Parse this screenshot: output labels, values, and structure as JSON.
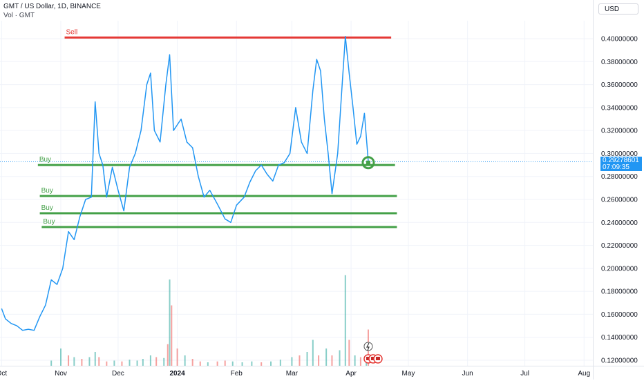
{
  "header": {
    "title": "GMT / US Dollar, 1D, BINANCE",
    "volume_label": "Vol · GMT",
    "currency": "USD"
  },
  "last_price": {
    "value": "0.29278601",
    "countdown": "07:09:35"
  },
  "colors": {
    "price_line": "#2196f3",
    "sell_line": "#e53935",
    "buy_line": "#43a047",
    "vol_up": "#26a69a",
    "vol_down": "#ef5350"
  },
  "chart_data": {
    "type": "line",
    "title": "GMT / US Dollar, 1D, BINANCE",
    "ylim": [
      0.12,
      0.41
    ],
    "y_ticks": [
      "0.40000000",
      "0.38000000",
      "0.36000000",
      "0.34000000",
      "0.32000000",
      "0.30000000",
      "0.28000000",
      "0.26000000",
      "0.24000000",
      "0.22000000",
      "0.20000000",
      "0.18000000",
      "0.16000000",
      "0.14000000",
      "0.12000000"
    ],
    "x_tick_labels": [
      "Oct",
      "Nov",
      "Dec",
      "2024",
      "Feb",
      "Mar",
      "Apr",
      "May",
      "Jun",
      "Jul",
      "Aug"
    ],
    "x_tick_dates": [
      "2023-10-01",
      "2023-11-01",
      "2023-12-01",
      "2024-01-01",
      "2024-02-01",
      "2024-03-01",
      "2024-04-01",
      "2024-05-01",
      "2024-06-01",
      "2024-07-01",
      "2024-08-01"
    ],
    "series": [
      {
        "values": [
          [
            "2023-10-01",
            0.165
          ],
          [
            "2023-10-03",
            0.156
          ],
          [
            "2023-10-06",
            0.152
          ],
          [
            "2023-10-09",
            0.15
          ],
          [
            "2023-10-12",
            0.146
          ],
          [
            "2023-10-15",
            0.147
          ],
          [
            "2023-10-18",
            0.146
          ],
          [
            "2023-10-21",
            0.158
          ],
          [
            "2023-10-24",
            0.168
          ],
          [
            "2023-10-27",
            0.19
          ],
          [
            "2023-10-30",
            0.186
          ],
          [
            "2023-11-02",
            0.2
          ],
          [
            "2023-11-05",
            0.232
          ],
          [
            "2023-11-08",
            0.225
          ],
          [
            "2023-11-11",
            0.245
          ],
          [
            "2023-11-14",
            0.26
          ],
          [
            "2023-11-17",
            0.262
          ],
          [
            "2023-11-19",
            0.345
          ],
          [
            "2023-11-21",
            0.3
          ],
          [
            "2023-11-23",
            0.29
          ],
          [
            "2023-11-25",
            0.262
          ],
          [
            "2023-11-28",
            0.288
          ],
          [
            "2023-12-01",
            0.268
          ],
          [
            "2023-12-04",
            0.25
          ],
          [
            "2023-12-07",
            0.288
          ],
          [
            "2023-12-10",
            0.3
          ],
          [
            "2023-12-13",
            0.32
          ],
          [
            "2023-12-16",
            0.36
          ],
          [
            "2023-12-18",
            0.37
          ],
          [
            "2023-12-20",
            0.32
          ],
          [
            "2023-12-23",
            0.31
          ],
          [
            "2023-12-26",
            0.36
          ],
          [
            "2023-12-28",
            0.386
          ],
          [
            "2023-12-30",
            0.32
          ],
          [
            "2024-01-03",
            0.33
          ],
          [
            "2024-01-06",
            0.31
          ],
          [
            "2024-01-09",
            0.305
          ],
          [
            "2024-01-12",
            0.28
          ],
          [
            "2024-01-15",
            0.262
          ],
          [
            "2024-01-18",
            0.268
          ],
          [
            "2024-01-22",
            0.256
          ],
          [
            "2024-01-26",
            0.243
          ],
          [
            "2024-01-29",
            0.24
          ],
          [
            "2024-02-01",
            0.255
          ],
          [
            "2024-02-05",
            0.262
          ],
          [
            "2024-02-08",
            0.275
          ],
          [
            "2024-02-11",
            0.285
          ],
          [
            "2024-02-14",
            0.29
          ],
          [
            "2024-02-17",
            0.282
          ],
          [
            "2024-02-20",
            0.276
          ],
          [
            "2024-02-23",
            0.29
          ],
          [
            "2024-02-26",
            0.292
          ],
          [
            "2024-02-29",
            0.3
          ],
          [
            "2024-03-03",
            0.34
          ],
          [
            "2024-03-06",
            0.31
          ],
          [
            "2024-03-09",
            0.3
          ],
          [
            "2024-03-12",
            0.355
          ],
          [
            "2024-03-14",
            0.382
          ],
          [
            "2024-03-16",
            0.372
          ],
          [
            "2024-03-18",
            0.33
          ],
          [
            "2024-03-20",
            0.3
          ],
          [
            "2024-03-22",
            0.265
          ],
          [
            "2024-03-25",
            0.3
          ],
          [
            "2024-03-27",
            0.352
          ],
          [
            "2024-03-29",
            0.402
          ],
          [
            "2024-03-31",
            0.37
          ],
          [
            "2024-04-02",
            0.34
          ],
          [
            "2024-04-04",
            0.308
          ],
          [
            "2024-04-06",
            0.315
          ],
          [
            "2024-04-08",
            0.335
          ],
          [
            "2024-04-10",
            0.293
          ]
        ]
      }
    ],
    "annotations": [
      {
        "label": "Sell",
        "price": 0.401,
        "from": "2023-11-03",
        "to": "2024-04-22",
        "color": "sell"
      },
      {
        "label": "Buy",
        "price": 0.29,
        "from": "2023-10-20",
        "to": "2024-04-24",
        "color": "buy"
      },
      {
        "label": "Buy",
        "price": 0.263,
        "from": "2023-10-21",
        "to": "2024-04-25",
        "color": "buy"
      },
      {
        "label": "Buy",
        "price": 0.248,
        "from": "2023-10-21",
        "to": "2024-04-25",
        "color": "buy"
      },
      {
        "label": "Buy",
        "price": 0.236,
        "from": "2023-10-22",
        "to": "2024-04-25",
        "color": "buy"
      }
    ],
    "highlight_point": {
      "date": "2024-04-10",
      "price": 0.292
    },
    "last_value_line": 0.29278601,
    "volume": {
      "ymax": 1,
      "bars": [
        [
          "2023-10-27",
          0.06,
          1
        ],
        [
          "2023-11-01",
          0.2,
          1
        ],
        [
          "2023-11-05",
          0.12,
          0
        ],
        [
          "2023-11-08",
          0.1,
          1
        ],
        [
          "2023-11-12",
          0.08,
          0
        ],
        [
          "2023-11-16",
          0.1,
          1
        ],
        [
          "2023-11-19",
          0.16,
          1
        ],
        [
          "2023-11-21",
          0.1,
          0
        ],
        [
          "2023-11-25",
          0.05,
          0
        ],
        [
          "2023-11-29",
          0.06,
          1
        ],
        [
          "2023-12-03",
          0.05,
          0
        ],
        [
          "2023-12-07",
          0.07,
          1
        ],
        [
          "2023-12-11",
          0.06,
          1
        ],
        [
          "2023-12-14",
          0.08,
          1
        ],
        [
          "2023-12-18",
          0.12,
          1
        ],
        [
          "2023-12-21",
          0.1,
          0
        ],
        [
          "2023-12-25",
          0.09,
          1
        ],
        [
          "2023-12-27",
          0.25,
          0
        ],
        [
          "2023-12-28",
          1.0,
          1
        ],
        [
          "2023-12-29",
          0.7,
          0
        ],
        [
          "2024-01-01",
          0.2,
          0
        ],
        [
          "2024-01-05",
          0.12,
          1
        ],
        [
          "2024-01-09",
          0.08,
          0
        ],
        [
          "2024-01-13",
          0.05,
          0
        ],
        [
          "2024-01-17",
          0.04,
          1
        ],
        [
          "2024-01-22",
          0.05,
          0
        ],
        [
          "2024-01-26",
          0.06,
          0
        ],
        [
          "2024-01-30",
          0.05,
          1
        ],
        [
          "2024-02-04",
          0.04,
          1
        ],
        [
          "2024-02-09",
          0.05,
          1
        ],
        [
          "2024-02-14",
          0.04,
          0
        ],
        [
          "2024-02-19",
          0.05,
          1
        ],
        [
          "2024-02-24",
          0.07,
          1
        ],
        [
          "2024-03-01",
          0.1,
          1
        ],
        [
          "2024-03-05",
          0.12,
          0
        ],
        [
          "2024-03-09",
          0.16,
          1
        ],
        [
          "2024-03-12",
          0.3,
          1
        ],
        [
          "2024-03-15",
          0.12,
          0
        ],
        [
          "2024-03-19",
          0.2,
          1
        ],
        [
          "2024-03-22",
          0.12,
          0
        ],
        [
          "2024-03-26",
          0.18,
          1
        ],
        [
          "2024-03-29",
          1.05,
          1
        ],
        [
          "2024-03-31",
          0.3,
          0
        ],
        [
          "2024-04-03",
          0.12,
          1
        ],
        [
          "2024-04-06",
          0.1,
          0
        ],
        [
          "2024-04-09",
          0.05,
          1
        ],
        [
          "2024-04-10",
          0.42,
          0
        ]
      ]
    }
  }
}
